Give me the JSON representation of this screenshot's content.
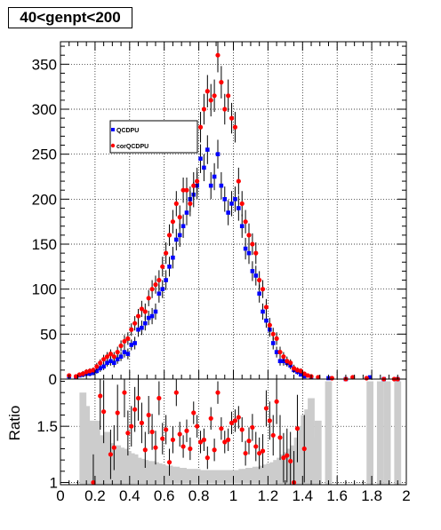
{
  "title": "40<genpt<200",
  "colors": {
    "series1": "#0000ff",
    "series2": "#ff0000",
    "band": "#cccccc",
    "grid": "#000000"
  },
  "chart_data": [
    {
      "type": "scatter",
      "title": "40<genpt<200",
      "xlabel": "",
      "ylabel": "",
      "xlim": [
        0,
        2
      ],
      "ylim": [
        0,
        375
      ],
      "yticks": [
        0,
        50,
        100,
        150,
        200,
        250,
        300,
        350
      ],
      "grid": true,
      "legend": "upper-left-inside",
      "series": [
        {
          "name": "QCDPU",
          "marker": "square",
          "color": "#0000ff",
          "x": [
            0.05,
            0.09,
            0.11,
            0.13,
            0.15,
            0.17,
            0.19,
            0.21,
            0.23,
            0.25,
            0.27,
            0.29,
            0.31,
            0.33,
            0.35,
            0.37,
            0.39,
            0.41,
            0.43,
            0.45,
            0.47,
            0.49,
            0.51,
            0.53,
            0.55,
            0.57,
            0.59,
            0.61,
            0.63,
            0.65,
            0.67,
            0.69,
            0.71,
            0.73,
            0.75,
            0.77,
            0.79,
            0.81,
            0.83,
            0.85,
            0.87,
            0.89,
            0.91,
            0.93,
            0.95,
            0.97,
            0.99,
            1.01,
            1.03,
            1.05,
            1.07,
            1.09,
            1.11,
            1.13,
            1.15,
            1.17,
            1.19,
            1.21,
            1.23,
            1.25,
            1.27,
            1.29,
            1.31,
            1.33,
            1.35,
            1.37,
            1.39,
            1.41,
            1.45,
            1.55,
            1.65,
            1.79,
            1.87,
            1.95
          ],
          "y": [
            3,
            2,
            4,
            5,
            6,
            6,
            7,
            9,
            12,
            14,
            18,
            20,
            18,
            22,
            25,
            30,
            28,
            38,
            40,
            55,
            57,
            62,
            68,
            70,
            75,
            95,
            100,
            110,
            125,
            135,
            155,
            160,
            170,
            185,
            200,
            205,
            215,
            245,
            235,
            255,
            215,
            225,
            250,
            215,
            200,
            185,
            195,
            200,
            190,
            170,
            145,
            140,
            120,
            115,
            95,
            75,
            65,
            55,
            40,
            30,
            20,
            20,
            18,
            15,
            10,
            8,
            5,
            3,
            2,
            1,
            0,
            2,
            0,
            0
          ],
          "yerr": [
            2,
            2,
            2,
            3,
            3,
            3,
            3,
            3,
            4,
            4,
            4,
            5,
            5,
            5,
            5,
            6,
            6,
            6,
            7,
            8,
            8,
            8,
            8,
            9,
            9,
            10,
            10,
            11,
            11,
            12,
            12,
            13,
            13,
            14,
            14,
            14,
            15,
            16,
            15,
            16,
            15,
            15,
            16,
            15,
            14,
            14,
            14,
            14,
            14,
            13,
            12,
            12,
            11,
            11,
            10,
            9,
            8,
            8,
            7,
            6,
            5,
            5,
            4,
            4,
            3,
            3,
            2,
            2,
            2,
            1,
            1,
            1,
            1,
            1
          ]
        },
        {
          "name": "corQCDPU",
          "marker": "circle",
          "color": "#ff0000",
          "x": [
            0.05,
            0.09,
            0.11,
            0.13,
            0.15,
            0.17,
            0.19,
            0.21,
            0.23,
            0.25,
            0.27,
            0.29,
            0.31,
            0.33,
            0.35,
            0.37,
            0.39,
            0.41,
            0.43,
            0.45,
            0.47,
            0.49,
            0.51,
            0.53,
            0.55,
            0.57,
            0.59,
            0.61,
            0.63,
            0.65,
            0.67,
            0.69,
            0.71,
            0.73,
            0.75,
            0.77,
            0.79,
            0.81,
            0.83,
            0.85,
            0.87,
            0.89,
            0.91,
            0.93,
            0.95,
            0.97,
            0.99,
            1.01,
            1.03,
            1.05,
            1.07,
            1.09,
            1.11,
            1.13,
            1.15,
            1.17,
            1.19,
            1.21,
            1.23,
            1.25,
            1.27,
            1.29,
            1.31,
            1.33,
            1.35,
            1.37,
            1.39,
            1.41,
            1.43,
            1.45,
            1.49,
            1.57,
            1.65,
            1.69,
            1.77,
            1.87,
            1.93,
            1.95
          ],
          "y": [
            4,
            3,
            5,
            6,
            8,
            9,
            10,
            14,
            18,
            22,
            25,
            28,
            25,
            30,
            37,
            42,
            45,
            55,
            62,
            70,
            78,
            75,
            90,
            100,
            105,
            110,
            125,
            140,
            160,
            175,
            195,
            180,
            210,
            210,
            195,
            215,
            220,
            280,
            300,
            320,
            310,
            315,
            360,
            330,
            300,
            315,
            290,
            280,
            220,
            195,
            175,
            160,
            150,
            140,
            110,
            100,
            80,
            60,
            50,
            45,
            30,
            25,
            20,
            18,
            12,
            10,
            9,
            6,
            4,
            3,
            2,
            1,
            0,
            2,
            1,
            0,
            0,
            0
          ],
          "yerr": [
            2,
            2,
            2,
            3,
            3,
            3,
            3,
            4,
            4,
            5,
            5,
            5,
            5,
            6,
            6,
            7,
            7,
            7,
            8,
            8,
            9,
            9,
            9,
            10,
            10,
            11,
            11,
            12,
            12,
            13,
            14,
            13,
            14,
            14,
            14,
            15,
            15,
            17,
            17,
            18,
            18,
            18,
            19,
            18,
            17,
            18,
            17,
            17,
            15,
            14,
            13,
            13,
            12,
            12,
            10,
            10,
            9,
            8,
            7,
            7,
            6,
            5,
            5,
            4,
            4,
            3,
            3,
            2,
            2,
            2,
            1,
            1,
            1,
            1,
            1,
            1,
            1,
            1
          ]
        }
      ]
    },
    {
      "type": "scatter",
      "title": "",
      "xlabel": "",
      "ylabel": "Ratio",
      "xlim": [
        0,
        2
      ],
      "ylim": [
        0.98,
        1.92
      ],
      "yticks": [
        1,
        1.5
      ],
      "xticks": [
        0,
        0.2,
        0.4,
        0.6,
        0.8,
        1,
        1.2,
        1.4,
        1.6,
        1.8,
        2
      ],
      "grid": true,
      "series": [
        {
          "name": "",
          "marker": "circle",
          "color": "#ff0000",
          "x": [
            0.19,
            0.23,
            0.25,
            0.29,
            0.31,
            0.33,
            0.37,
            0.39,
            0.41,
            0.43,
            0.45,
            0.47,
            0.49,
            0.51,
            0.53,
            0.55,
            0.57,
            0.59,
            0.61,
            0.63,
            0.65,
            0.67,
            0.69,
            0.71,
            0.73,
            0.75,
            0.77,
            0.79,
            0.81,
            0.83,
            0.85,
            0.87,
            0.89,
            0.91,
            0.93,
            0.95,
            0.97,
            0.99,
            1.01,
            1.03,
            1.05,
            1.07,
            1.09,
            1.11,
            1.13,
            1.15,
            1.17,
            1.19,
            1.21,
            1.23,
            1.25,
            1.27,
            1.29,
            1.31,
            1.33,
            1.35,
            1.37,
            1.41
          ],
          "y": [
            1.0,
            1.77,
            1.63,
            1.25,
            1.31,
            1.62,
            1.8,
            1.44,
            1.5,
            1.65,
            1.75,
            1.53,
            1.29,
            1.6,
            1.45,
            1.31,
            1.75,
            1.39,
            1.47,
            1.18,
            1.38,
            1.8,
            1.43,
            1.32,
            1.46,
            1.3,
            1.62,
            1.5,
            1.36,
            1.38,
            1.22,
            1.57,
            1.29,
            1.8,
            1.48,
            1.36,
            1.38,
            1.53,
            1.55,
            1.58,
            1.47,
            1.26,
            1.37,
            1.49,
            1.32,
            1.26,
            1.28,
            1.66,
            1.55,
            1.42,
            1.72,
            1.4,
            1.22,
            1.24,
            1.19,
            1.0,
            1.48,
            1.3
          ],
          "yerr": [
            0.25,
            0.3,
            0.28,
            0.22,
            0.2,
            0.25,
            0.22,
            0.2,
            0.18,
            0.2,
            0.2,
            0.18,
            0.16,
            0.17,
            0.16,
            0.15,
            0.15,
            0.14,
            0.13,
            0.12,
            0.12,
            0.12,
            0.11,
            0.1,
            0.1,
            0.1,
            0.1,
            0.1,
            0.1,
            0.1,
            0.1,
            0.1,
            0.1,
            0.1,
            0.1,
            0.1,
            0.1,
            0.1,
            0.1,
            0.1,
            0.11,
            0.11,
            0.12,
            0.12,
            0.13,
            0.14,
            0.15,
            0.16,
            0.17,
            0.18,
            0.2,
            0.2,
            0.22,
            0.24,
            0.26,
            0.28,
            0.3,
            0.3
          ]
        },
        {
          "name": "",
          "marker": "band",
          "color": "#cccccc",
          "x": [
            0.13,
            0.15,
            0.17,
            0.19,
            0.21,
            0.23,
            0.25,
            0.27,
            0.29,
            0.31,
            0.33,
            0.35,
            0.37,
            0.39,
            0.41,
            0.43,
            0.45,
            0.47,
            0.49,
            0.51,
            0.53,
            0.55,
            0.57,
            0.59,
            0.61,
            0.63,
            0.65,
            0.67,
            0.69,
            0.71,
            0.73,
            0.75,
            0.77,
            0.79,
            0.81,
            0.83,
            0.85,
            0.87,
            0.89,
            0.91,
            0.93,
            0.95,
            0.97,
            0.99,
            1.01,
            1.03,
            1.05,
            1.07,
            1.09,
            1.11,
            1.13,
            1.15,
            1.17,
            1.19,
            1.21,
            1.23,
            1.25,
            1.27,
            1.29,
            1.31,
            1.33,
            1.35,
            1.37,
            1.39,
            1.41,
            1.43,
            1.45,
            1.47,
            1.49,
            1.55,
            1.79,
            1.85,
            1.89,
            1.95
          ],
          "y": [
            0.8,
            0.68,
            0.55,
            0.5,
            0.55,
            0.42,
            0.38,
            0.45,
            0.35,
            0.33,
            0.33,
            0.31,
            0.3,
            0.28,
            0.26,
            0.25,
            0.22,
            0.21,
            0.2,
            0.19,
            0.19,
            0.18,
            0.17,
            0.16,
            0.15,
            0.15,
            0.14,
            0.14,
            0.13,
            0.13,
            0.12,
            0.12,
            0.12,
            0.12,
            0.11,
            0.11,
            0.11,
            0.11,
            0.11,
            0.11,
            0.11,
            0.11,
            0.11,
            0.11,
            0.11,
            0.11,
            0.12,
            0.12,
            0.13,
            0.13,
            0.14,
            0.14,
            0.15,
            0.16,
            0.17,
            0.18,
            0.2,
            0.22,
            0.25,
            0.27,
            0.3,
            0.33,
            0.4,
            0.5,
            0.6,
            0.65,
            0.75,
            0.4,
            0.55,
            0.9,
            0.9,
            0.9,
            0.9,
            0.9
          ]
        }
      ]
    }
  ]
}
